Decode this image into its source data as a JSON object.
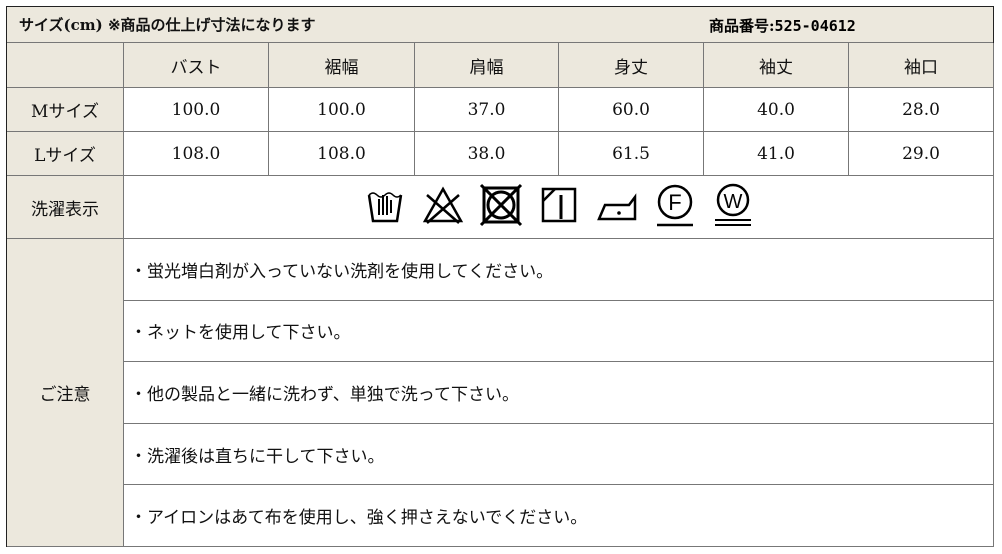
{
  "title": "サイズ(cm) ※商品の仕上げ寸法になります",
  "product_number_label": "商品番号:",
  "product_number": "525-04612",
  "columns": [
    "バスト",
    "裾幅",
    "肩幅",
    "身丈",
    "袖丈",
    "袖口"
  ],
  "rows": [
    {
      "label": "Mサイズ",
      "values": [
        "100.0",
        "100.0",
        "37.0",
        "60.0",
        "40.0",
        "28.0"
      ]
    },
    {
      "label": "Lサイズ",
      "values": [
        "108.0",
        "108.0",
        "38.0",
        "61.5",
        "41.0",
        "29.0"
      ]
    }
  ],
  "care_label": "洗濯表示",
  "care_icons": [
    "hand-wash-icon",
    "no-bleach-icon",
    "no-tumble-dry-icon",
    "shade-drip-dry-icon",
    "low-iron-icon",
    "dry-clean-f-icon",
    "wet-clean-w-icon"
  ],
  "notes_label": "ご注意",
  "notes": [
    "・蛍光増白剤が入っていない洗剤を使用してください。",
    "・ネットを使用して下さい。",
    "・他の製品と一緒に洗わず、単独で洗って下さい。",
    "・洗濯後は直ちに干して下さい。",
    "・アイロンはあて布を使用し、強く押さえないでください。"
  ]
}
